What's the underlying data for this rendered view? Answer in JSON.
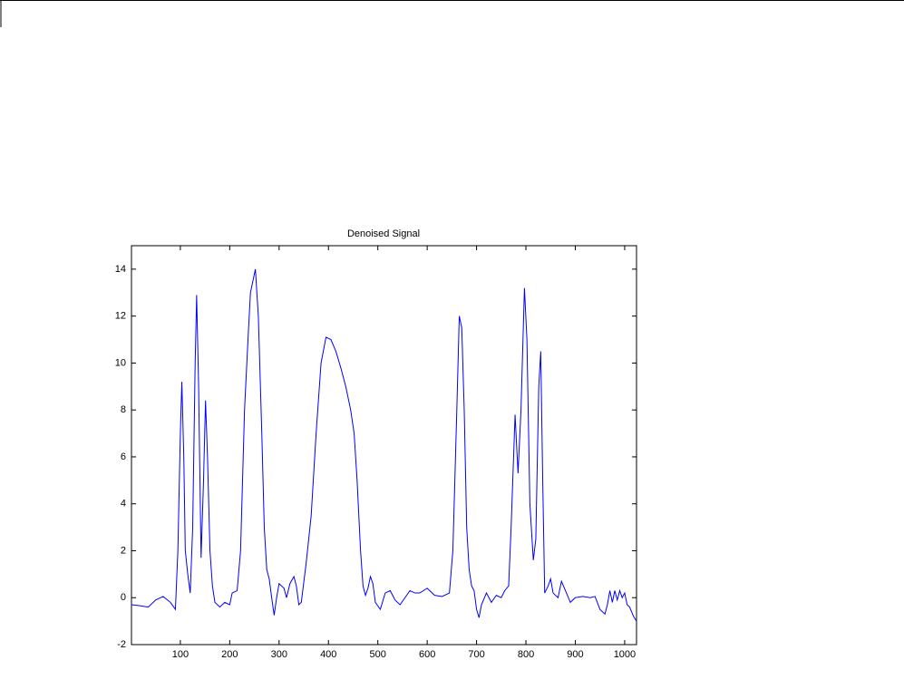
{
  "chart_data": {
    "type": "line",
    "title": "Denoised Signal",
    "x": [
      1,
      20,
      35,
      50,
      65,
      80,
      90,
      95,
      100,
      103,
      107,
      110,
      115,
      120,
      125,
      130,
      133,
      137,
      142,
      147,
      151,
      155,
      160,
      165,
      170,
      180,
      190,
      200,
      205,
      215,
      222,
      230,
      237,
      242,
      252,
      258,
      265,
      270,
      275,
      280,
      285,
      290,
      295,
      300,
      310,
      315,
      322,
      330,
      335,
      340,
      345,
      355,
      365,
      375,
      385,
      395,
      405,
      415,
      425,
      435,
      445,
      452,
      458,
      465,
      470,
      475,
      480,
      485,
      490,
      495,
      505,
      515,
      525,
      535,
      545,
      555,
      565,
      575,
      585,
      600,
      615,
      630,
      645,
      652,
      660,
      665,
      670,
      675,
      680,
      685,
      690,
      695,
      700,
      705,
      710,
      720,
      730,
      740,
      750,
      757,
      765,
      770,
      778,
      784,
      790,
      797,
      802,
      808,
      815,
      820,
      826,
      830,
      834,
      838,
      845,
      850,
      855,
      865,
      872,
      880,
      890,
      900,
      915,
      930,
      940,
      950,
      960,
      965,
      970,
      975,
      980,
      985,
      990,
      995,
      1000,
      1005,
      1010,
      1018,
      1024
    ],
    "series": [
      {
        "name": "Denoised Signal",
        "color": "#0000ff",
        "values": [
          -0.3,
          -0.35,
          -0.4,
          -0.1,
          0.05,
          -0.2,
          -0.5,
          2,
          7,
          9.2,
          6,
          2,
          1,
          0.2,
          3,
          10,
          12.9,
          9,
          1.7,
          5,
          8.4,
          6,
          2,
          0.5,
          -0.2,
          -0.4,
          -0.2,
          -0.3,
          0.2,
          0.3,
          2,
          8,
          11,
          13,
          14,
          12,
          7,
          3,
          1.2,
          0.8,
          0,
          -0.75,
          0,
          0.6,
          0.4,
          0,
          0.6,
          0.9,
          0.5,
          -0.3,
          -0.2,
          1.5,
          3.5,
          7,
          10,
          11.1,
          11,
          10.5,
          9.8,
          9,
          8,
          7,
          5,
          2,
          0.5,
          0.1,
          0.4,
          0.9,
          0.6,
          -0.2,
          -0.5,
          0.2,
          0.3,
          -0.1,
          -0.3,
          0,
          0.3,
          0.2,
          0.2,
          0.4,
          0.1,
          0.05,
          0.2,
          2,
          8,
          12,
          11.5,
          8,
          3,
          1.2,
          0.5,
          0.3,
          -0.5,
          -0.85,
          -0.3,
          0.2,
          -0.2,
          0.1,
          0,
          0.3,
          0.5,
          3,
          7.8,
          5.3,
          8,
          13.2,
          11,
          4,
          1.6,
          2.5,
          9,
          10.5,
          5,
          0.2,
          0.5,
          0.8,
          0.2,
          0,
          0.7,
          0.3,
          -0.2,
          0,
          0.05,
          0,
          0.05,
          -0.5,
          -0.7,
          -0.3,
          0.3,
          -0.2,
          0.3,
          -0.1,
          0.3,
          0,
          0.2,
          -0.3,
          -0.4,
          -0.8,
          -1
        ]
      }
    ],
    "xlim": [
      1,
      1024
    ],
    "xticks": [
      100,
      200,
      300,
      400,
      500,
      600,
      700,
      800,
      900,
      1000
    ],
    "ylim": [
      -2,
      15
    ],
    "yticks": [
      -2,
      0,
      2,
      4,
      6,
      8,
      10,
      12,
      14
    ],
    "grid": false
  }
}
